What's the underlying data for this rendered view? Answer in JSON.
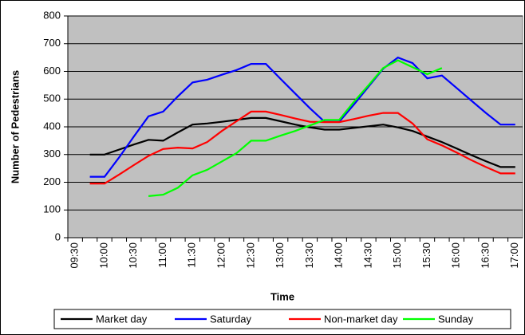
{
  "chart_data": {
    "type": "line",
    "x_label": "Time",
    "y_label": "Number of Pedestrians",
    "categories": [
      "09:30",
      null,
      "10:00",
      null,
      "10:30",
      null,
      "11:00",
      null,
      "11:30",
      null,
      "12:00",
      null,
      "12:30",
      null,
      "13:00",
      null,
      "13:30",
      null,
      "14:00",
      null,
      "14:30",
      null,
      "15:00",
      null,
      "15:30",
      null,
      "16:00",
      null,
      "16:30",
      null,
      "17:00"
    ],
    "series": [
      {
        "name": "Market day",
        "color": "#000000",
        "values": [
          null,
          300,
          300,
          318,
          336,
          353,
          350,
          380,
          408,
          412,
          418,
          425,
          432,
          432,
          420,
          408,
          398,
          390,
          390,
          396,
          402,
          408,
          398,
          385,
          365,
          345,
          322,
          298,
          276,
          255,
          255
        ]
      },
      {
        "name": "Saturday",
        "color": "#0000ff",
        "values": [
          null,
          220,
          220,
          290,
          365,
          438,
          455,
          510,
          560,
          570,
          588,
          605,
          627,
          627,
          573,
          520,
          467,
          418,
          418,
          480,
          545,
          610,
          650,
          630,
          575,
          585,
          540,
          495,
          450,
          408,
          408
        ]
      },
      {
        "name": "Non-market day",
        "color": "#ff0000",
        "values": [
          null,
          195,
          195,
          228,
          262,
          295,
          320,
          325,
          322,
          345,
          385,
          420,
          455,
          455,
          443,
          430,
          418,
          417,
          417,
          428,
          440,
          450,
          450,
          412,
          355,
          333,
          307,
          280,
          255,
          232,
          232
        ]
      },
      {
        "name": "Sunday",
        "color": "#00ff00",
        "values": [
          null,
          null,
          null,
          null,
          null,
          150,
          155,
          180,
          225,
          245,
          275,
          305,
          350,
          350,
          368,
          385,
          405,
          425,
          425,
          490,
          550,
          612,
          640,
          615,
          590,
          612,
          null,
          null,
          null,
          null,
          null
        ]
      }
    ],
    "ylim": [
      0,
      800
    ],
    "yticks": [
      0,
      100,
      200,
      300,
      400,
      500,
      600,
      700,
      800
    ],
    "grid": true,
    "plot_background": "#c0c0c0",
    "legend": "bottom"
  }
}
